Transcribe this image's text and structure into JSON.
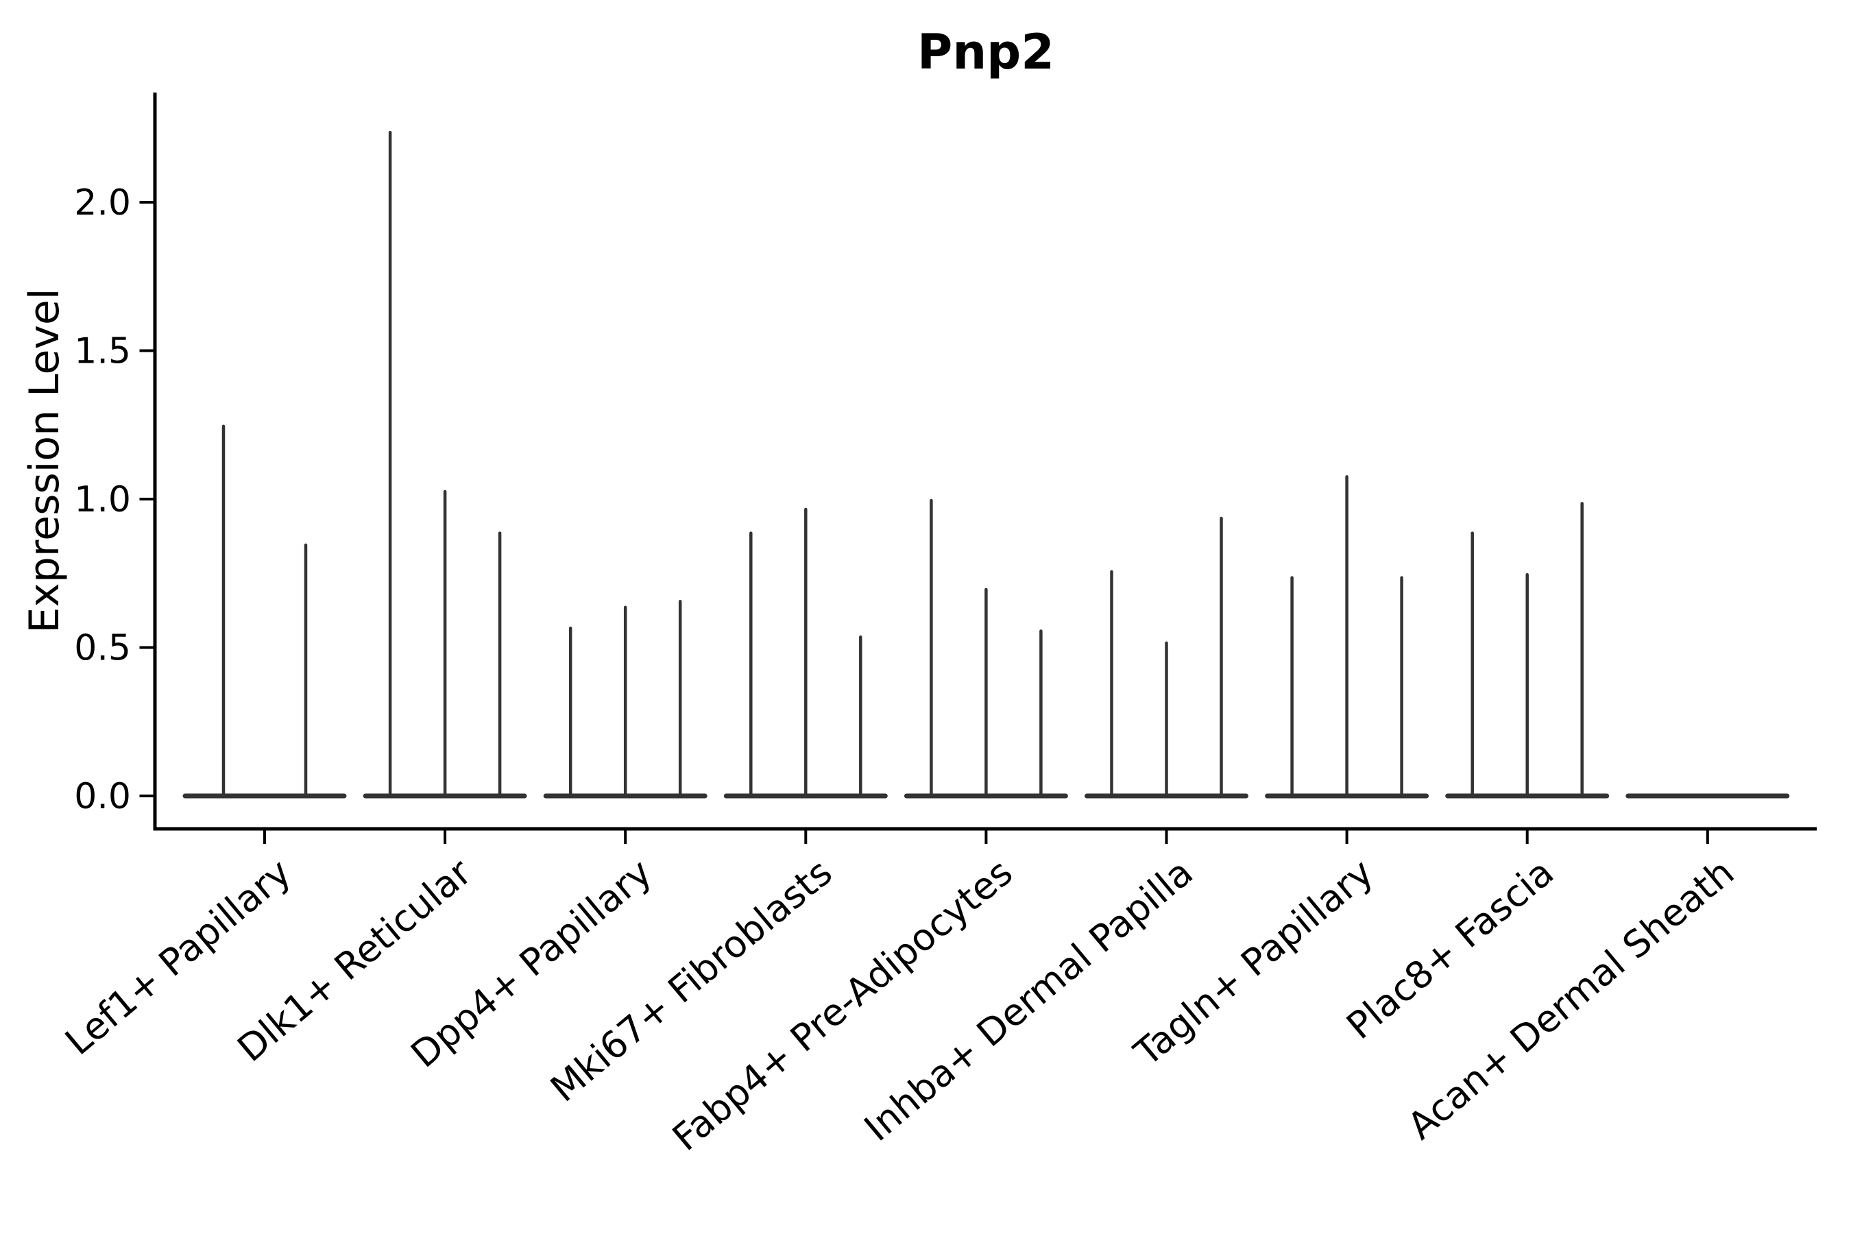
{
  "chart_data": {
    "type": "violin",
    "title": "Pnp2",
    "ylabel": "Expression Level",
    "xlabel": "",
    "grid": false,
    "legend": null,
    "ylim": [
      -0.11,
      2.37
    ],
    "ytick_labels": [
      "0.0",
      "0.5",
      "1.0",
      "1.5",
      "2.0"
    ],
    "ytick_values": [
      0.0,
      0.5,
      1.0,
      1.5,
      2.0
    ],
    "categories": [
      "Lef1+ Papillary",
      "Dlk1+ Reticular",
      "Dpp4+ Papillary",
      "Mki67+ Fibroblasts",
      "Fabp4+ Pre-Adipocytes",
      "Inhba+ Dermal Papilla",
      "Tagln+ Papillary",
      "Plac8+ Fascia",
      "Acan+ Dermal Sheath"
    ],
    "spike_heights": [
      [
        1.25,
        0.85
      ],
      [
        2.24,
        1.03,
        0.89
      ],
      [
        0.57,
        0.64,
        0.66
      ],
      [
        0.89,
        0.97,
        0.54
      ],
      [
        1.0,
        0.7,
        0.56
      ],
      [
        0.76,
        0.52,
        0.94
      ],
      [
        0.74,
        1.08,
        0.74
      ],
      [
        0.89,
        0.75,
        0.99
      ],
      []
    ],
    "style_note": "each category shows very thin near-zero-width violins (spikes) rising from a flat baseline at 0; last category is entirely flat",
    "colors": {
      "background": "#ffffff",
      "axis": "#000000",
      "text": "#000000",
      "violin": "#333333"
    }
  }
}
